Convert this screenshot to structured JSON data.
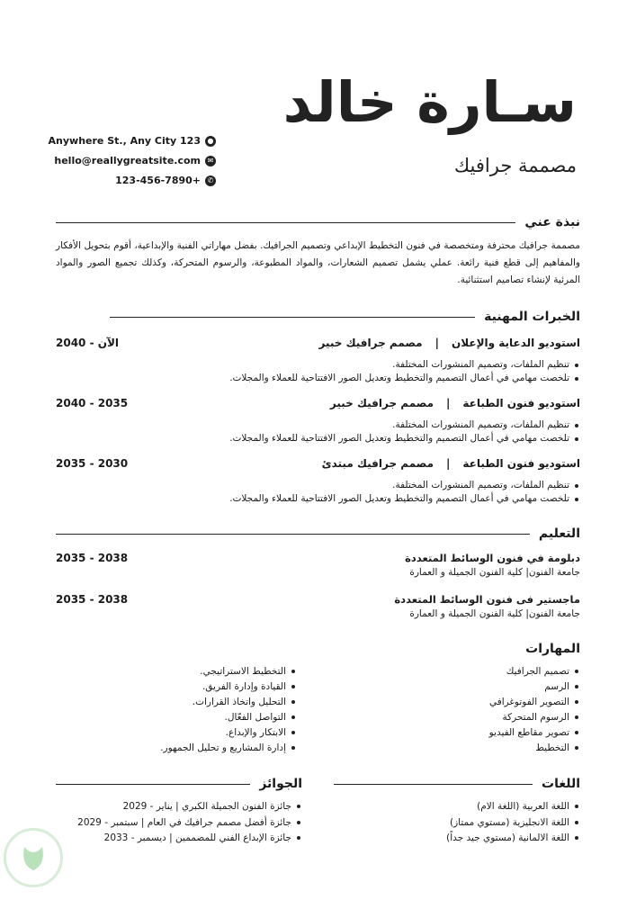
{
  "header": {
    "name": "سـارة خالد",
    "title": "مصممة جرافيك"
  },
  "contact": {
    "address": "Anywhere St., Any City 123",
    "email": "hello@reallygreatsite.com",
    "phone": "123-456-7890+"
  },
  "about": {
    "heading": "نبذة عني",
    "text": "مصممة جرافيك محترفة ومتخصصة في فنون التخطيط الإبداعي وتصميم الجرافيك. بفضل مهاراتي الفنية والإبداعية، أقوم بتحويل الأفكار والمفاهيم إلى قطع فنية رائعة. عملي يشمل تصميم الشعارات، والمواد المطبوعة، والرسوم المتحركة، وكذلك تجميع الصور والمواد المرئية لإنشاء تصاميم استثنائية."
  },
  "experience": {
    "heading": "الخبرات المهنية",
    "jobs": [
      {
        "company": "استوديو الدعاية والإعلان",
        "role": "مصمم جرافيك خبير",
        "dates": "2040 - الآن",
        "bullets": [
          "تنظيم الملفات، وتصميم المنشورات المختلفة.",
          "تلخصت مهامي في أعمال التصميم والتخطيط وتعديل الصور الافتتاحية للعملاء والمجلات."
        ]
      },
      {
        "company": "استوديو فنون الطباعة",
        "role": "مصمم جرافيك خبير",
        "dates": "2040 - 2035",
        "bullets": [
          "تنظيم الملفات، وتصميم المنشورات المختلفة.",
          "تلخصت مهامي في أعمال التصميم والتخطيط وتعديل الصور الافتتاحية للعملاء والمجلات."
        ]
      },
      {
        "company": "استوديو فنون الطباعة",
        "role": "مصمم جرافيك مبتدئ",
        "dates": "2035 - 2030",
        "bullets": [
          "تنظيم الملفات، وتصميم المنشورات المختلفة.",
          "تلخصت مهامي في أعمال التصميم والتخطيط وتعديل الصور الافتتاحية للعملاء والمجلات."
        ]
      }
    ]
  },
  "education": {
    "heading": "التعليم",
    "items": [
      {
        "degree": "دبلومة في فنون الوسائط المتعددة",
        "school": "جامعة الفنون| كلية الفنون الجميلة و العمارة",
        "dates": "2035 - 2038"
      },
      {
        "degree": "ماجستير فى فنون الوسائط المتعددة",
        "school": "جامعة الفنون| كلية الفنون الجميلة و العمارة",
        "dates": "2035 - 2038"
      }
    ]
  },
  "skills": {
    "heading": "المهارات",
    "col1": [
      "تصميم الجرافيك",
      "الرسم",
      "التصوير الفوتوغرافي",
      "الرسوم المتحركة",
      "تصوير مقاطع الفيديو",
      "التخطيط"
    ],
    "col2": [
      "التخطيط الاستراتيجي.",
      "القيادة وإدارة الفريق.",
      "التحليل واتخاذ القرارات.",
      "التواصل الفعّال.",
      "الابتكار والإبداع.",
      "إدارة المشاريع و تحليل الجمهور."
    ]
  },
  "languages": {
    "heading": "اللغات",
    "items": [
      "اللغة العربية  (اللغة الام)",
      "اللغة الانجليزية (مستوي ممتاز)",
      "اللغة الالمانية (مستوي جيد جداً)"
    ]
  },
  "awards": {
    "heading": "الجوائز",
    "items": [
      "جائزة الفنون الجميلة الكبري | يناير - 2029",
      "جائزة أفضل مصمم جرافيك في العام | سبتمبر - 2029",
      "جائزة الإبداع الفني للمصممين | ديسمبر - 2033"
    ]
  },
  "colors": {
    "text": "#1a1a1a",
    "watermark": "#7cc47f"
  }
}
